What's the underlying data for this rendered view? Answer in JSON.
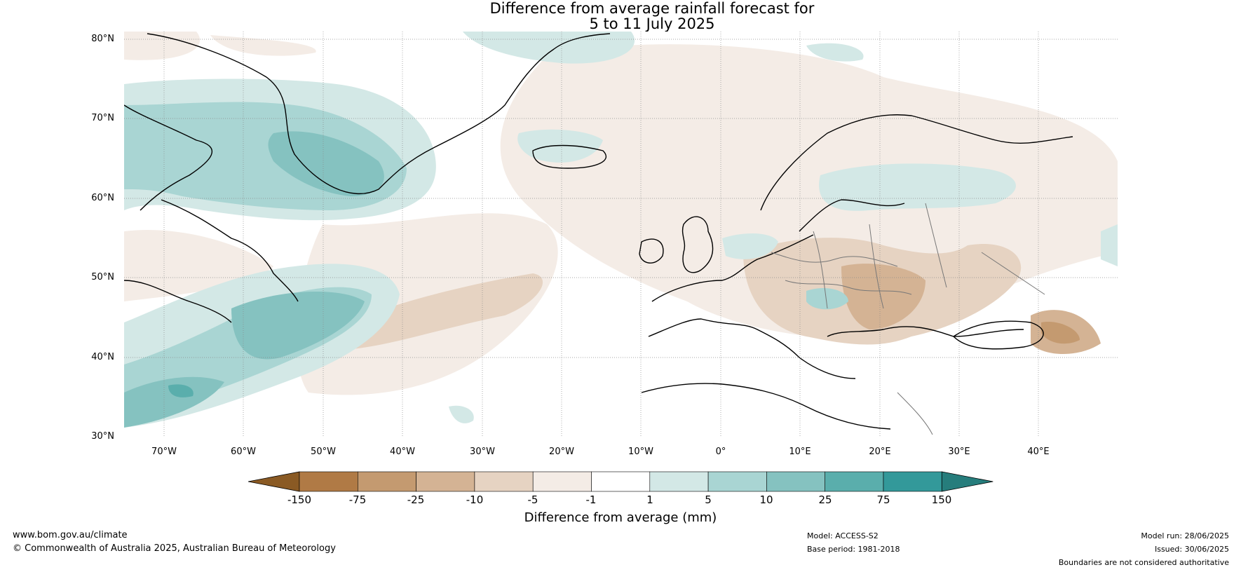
{
  "title": {
    "line1": "Difference from average rainfall forecast for",
    "line2": "5 to 11 July 2025"
  },
  "map": {
    "lat_labels": [
      "80°N",
      "70°N",
      "60°N",
      "50°N",
      "40°N",
      "30°N"
    ],
    "lon_labels": [
      "70°W",
      "60°W",
      "50°W",
      "40°W",
      "30°W",
      "20°W",
      "10°W",
      "0°",
      "10°E",
      "20°E",
      "30°E",
      "40°E"
    ],
    "extent": {
      "lon_min": -75,
      "lon_max": 50,
      "lat_min": 30,
      "lat_max": 81
    }
  },
  "colorbar": {
    "title": "Difference from average (mm)",
    "ticks": [
      "-150",
      "-75",
      "-25",
      "-10",
      "-5",
      "-1",
      "1",
      "5",
      "10",
      "25",
      "75",
      "150"
    ],
    "colors": [
      "#8a5a24",
      "#b07a45",
      "#c49a70",
      "#d4b394",
      "#e6d3c2",
      "#f4ece6",
      "#ffffff",
      "#d3e8e6",
      "#a9d5d3",
      "#85c2c0",
      "#5aaeac",
      "#33999a",
      "#267d7c"
    ]
  },
  "footer": {
    "url": "www.bom.gov.au/climate",
    "copyright": "© Commonwealth of Australia 2025, Australian Bureau of Meteorology",
    "model": "Model: ACCESS-S2",
    "base_period": "Base period: 1981-2018",
    "model_run": "Model run: 28/06/2025",
    "issued": "Issued: 30/06/2025",
    "disclaimer": "Boundaries are not considered authoritative"
  }
}
